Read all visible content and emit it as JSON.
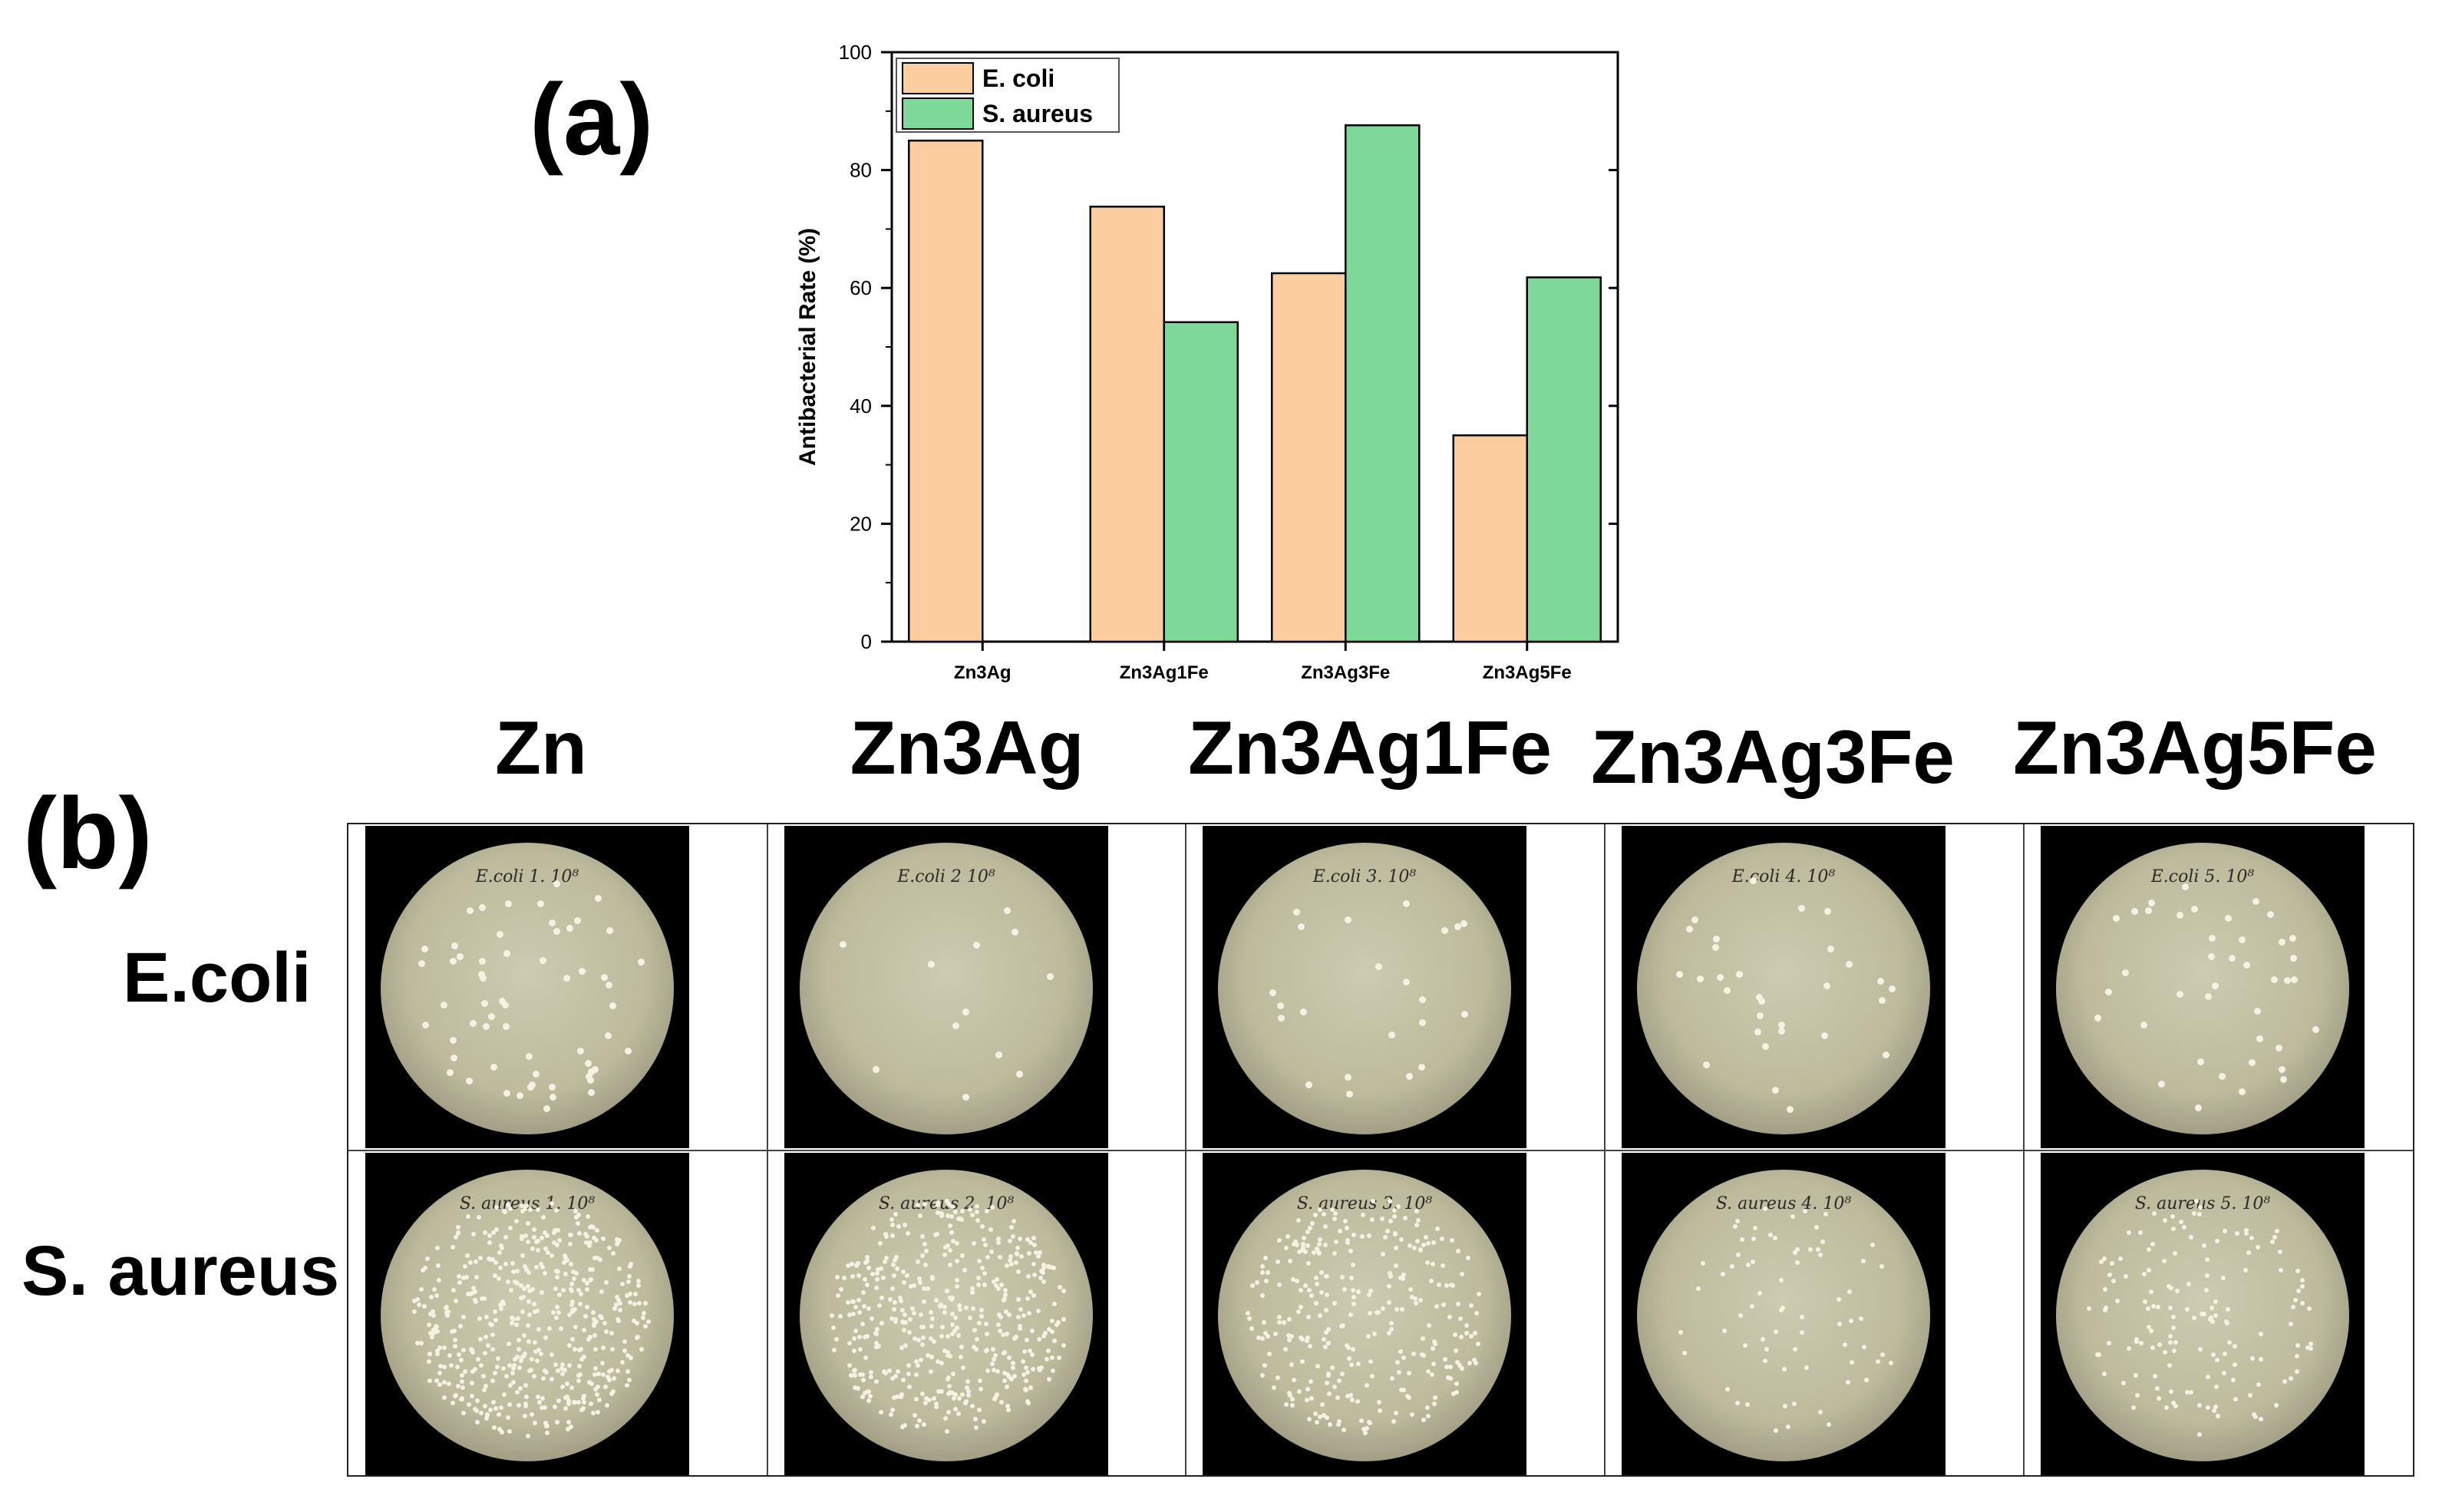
{
  "panels": {
    "a": "(a)",
    "b": "(b)"
  },
  "chart_data": {
    "type": "bar",
    "categories": [
      "Zn3Ag",
      "Zn3Ag1Fe",
      "Zn3Ag3Fe",
      "Zn3Ag5Fe"
    ],
    "series": [
      {
        "name": "E. coli",
        "color": "#fbcd9f",
        "values": [
          85,
          73.8,
          62.5,
          35
        ]
      },
      {
        "name": "S. aureus",
        "color": "#7dd89a",
        "values": [
          null,
          54.2,
          87.6,
          61.8
        ]
      }
    ],
    "ylabel": "Antibacterial Rate (%)",
    "xlabel": "",
    "ylim": [
      0,
      100
    ],
    "yticks": [
      0,
      20,
      40,
      60,
      80,
      100
    ],
    "legend_position": "top-left",
    "grid": false
  },
  "plates": {
    "columns": [
      "Zn",
      "Zn3Ag",
      "Zn3Ag1Fe",
      "Zn3Ag3Fe",
      "Zn3Ag5Fe"
    ],
    "rows": [
      "E.coli",
      "S. aureus"
    ],
    "dish_labels": [
      [
        "E.coli 1. 10⁸",
        "E.coli 2 10⁸",
        "E.coli 3. 10⁸",
        "E.coli 4. 10⁸",
        "E.coli 5. 10⁸"
      ],
      [
        "S. aureus 1. 10⁸",
        "S. aureus 2. 10⁸",
        "S. aureus 3. 10⁸",
        "S. aureus 4. 10⁸",
        "S. aureus 5. 10⁸"
      ]
    ],
    "colony_density": [
      [
        60,
        12,
        22,
        30,
        40
      ],
      [
        500,
        450,
        300,
        70,
        150
      ]
    ]
  }
}
